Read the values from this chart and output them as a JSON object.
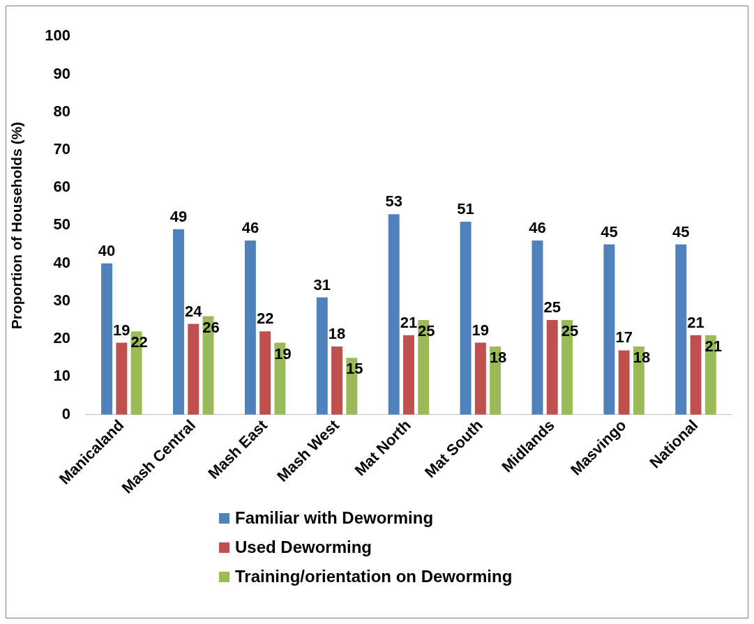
{
  "chart_data": {
    "type": "bar",
    "ylabel": "Proportion of Households (%)",
    "categories": [
      "Manicaland",
      "Mash Central",
      "Mash East",
      "Mash West",
      "Mat North",
      "Mat South",
      "Midlands",
      "Masvingo",
      "National"
    ],
    "series": [
      {
        "name": "Familiar with Deworming",
        "color": "#4f81bd",
        "values": [
          40,
          49,
          46,
          31,
          53,
          51,
          46,
          45,
          45
        ]
      },
      {
        "name": "Used  Deworming",
        "color": "#c0504d",
        "values": [
          19,
          24,
          22,
          18,
          21,
          19,
          25,
          17,
          21
        ]
      },
      {
        "name": "Training/orientation on  Deworming",
        "color": "#9bbb59",
        "values": [
          22,
          26,
          19,
          15,
          25,
          18,
          25,
          18,
          21
        ]
      }
    ],
    "ylim": [
      0,
      100
    ],
    "yticks": [
      0,
      10,
      20,
      30,
      40,
      50,
      60,
      70,
      80,
      90,
      100
    ],
    "data_labels": true,
    "legend": "bottom"
  }
}
